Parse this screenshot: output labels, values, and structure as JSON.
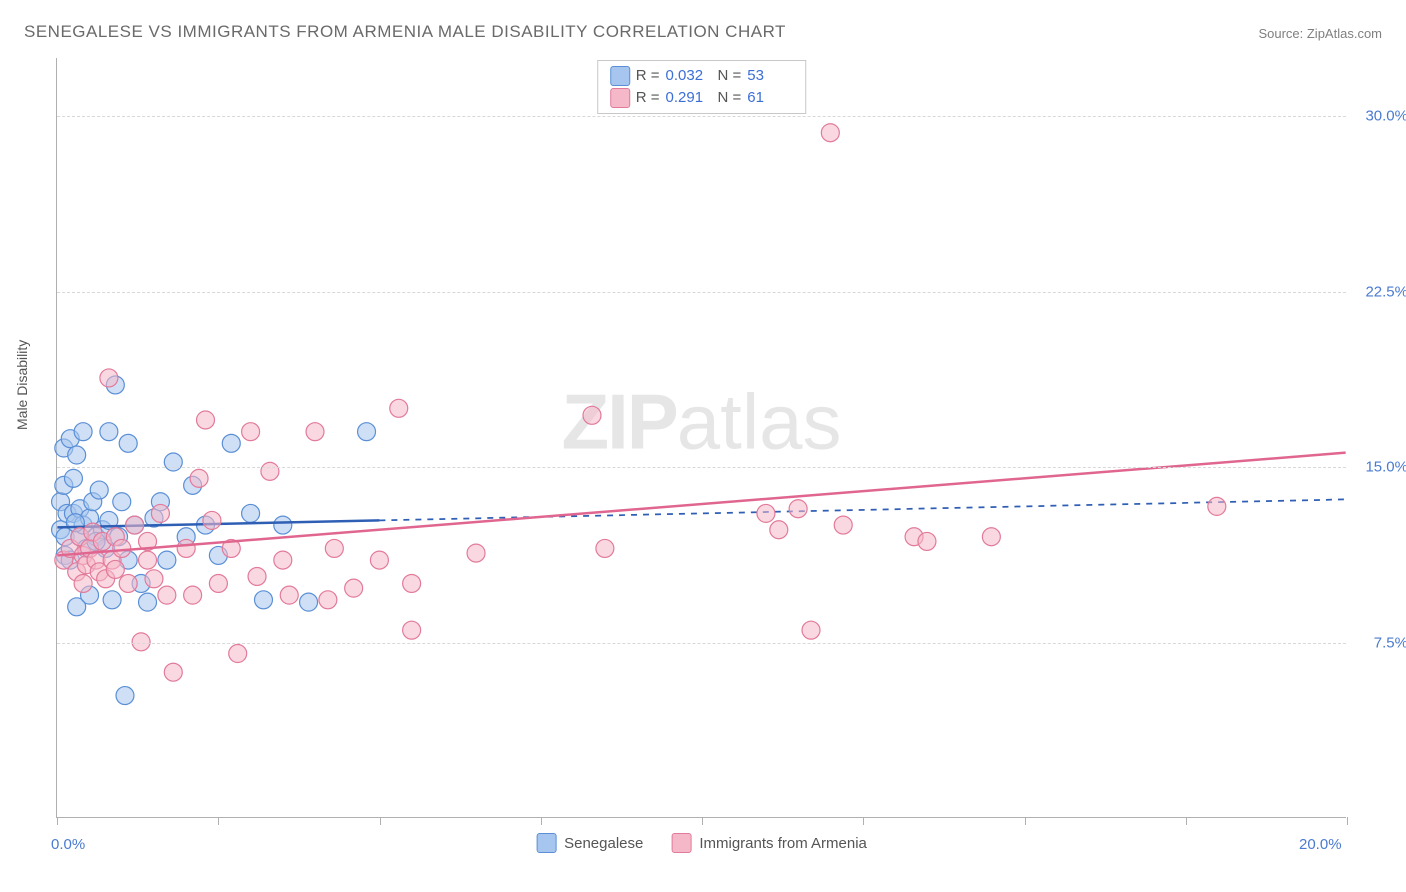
{
  "title": "SENEGALESE VS IMMIGRANTS FROM ARMENIA MALE DISABILITY CORRELATION CHART",
  "source": "Source: ZipAtlas.com",
  "ylabel": "Male Disability",
  "watermark_a": "ZIP",
  "watermark_b": "atlas",
  "chart": {
    "type": "scatter",
    "xlim": [
      0,
      20
    ],
    "ylim": [
      0,
      32.5
    ],
    "y_gridlines": [
      7.5,
      15.0,
      22.5,
      30.0
    ],
    "y_tick_labels": [
      "7.5%",
      "15.0%",
      "22.5%",
      "30.0%"
    ],
    "x_ticks": [
      0,
      2.5,
      5,
      7.5,
      10,
      12.5,
      15,
      17.5,
      20
    ],
    "x_tick_labels": {
      "0": "0.0%",
      "20": "20.0%"
    },
    "grid_color": "#d8d8d8",
    "axis_color": "#b0b0b0",
    "background_color": "#ffffff",
    "marker_radius": 9,
    "marker_opacity": 0.55,
    "y_label_color": "#4a7bd0",
    "y_label_fontsize": 15
  },
  "series": [
    {
      "name": "Senegalese",
      "color_fill": "#a7c6ef",
      "color_stroke": "#5a8fd6",
      "r_label": "R =",
      "r_value": "0.032",
      "n_label": "N =",
      "n_value": "53",
      "trend": {
        "x1": 0,
        "y1": 12.4,
        "x2": 20,
        "y2": 13.6,
        "solid_until_x": 5.0,
        "color": "#2f5fb5",
        "width": 2.5
      },
      "points": [
        [
          0.05,
          12.3
        ],
        [
          0.05,
          13.5
        ],
        [
          0.1,
          15.8
        ],
        [
          0.1,
          14.2
        ],
        [
          0.12,
          12.0
        ],
        [
          0.12,
          11.2
        ],
        [
          0.15,
          13.0
        ],
        [
          0.2,
          16.2
        ],
        [
          0.2,
          11.0
        ],
        [
          0.25,
          13.0
        ],
        [
          0.25,
          14.5
        ],
        [
          0.3,
          15.5
        ],
        [
          0.3,
          9.0
        ],
        [
          0.35,
          12.0
        ],
        [
          0.35,
          13.2
        ],
        [
          0.4,
          12.5
        ],
        [
          0.4,
          16.5
        ],
        [
          0.45,
          11.5
        ],
        [
          0.5,
          12.8
        ],
        [
          0.5,
          9.5
        ],
        [
          0.55,
          13.5
        ],
        [
          0.6,
          12.0
        ],
        [
          0.65,
          14.0
        ],
        [
          0.7,
          12.3
        ],
        [
          0.75,
          11.5
        ],
        [
          0.8,
          16.5
        ],
        [
          0.8,
          12.7
        ],
        [
          0.85,
          9.3
        ],
        [
          0.9,
          18.5
        ],
        [
          0.95,
          12.0
        ],
        [
          1.0,
          13.5
        ],
        [
          1.1,
          11.0
        ],
        [
          1.1,
          16.0
        ],
        [
          1.2,
          12.5
        ],
        [
          1.3,
          10.0
        ],
        [
          1.4,
          9.2
        ],
        [
          1.5,
          12.8
        ],
        [
          1.6,
          13.5
        ],
        [
          1.7,
          11.0
        ],
        [
          1.8,
          15.2
        ],
        [
          2.0,
          12.0
        ],
        [
          2.1,
          14.2
        ],
        [
          2.3,
          12.5
        ],
        [
          2.5,
          11.2
        ],
        [
          2.7,
          16.0
        ],
        [
          3.0,
          13.0
        ],
        [
          3.2,
          9.3
        ],
        [
          3.5,
          12.5
        ],
        [
          3.9,
          9.2
        ],
        [
          4.8,
          16.5
        ],
        [
          1.05,
          5.2
        ],
        [
          0.28,
          12.6
        ],
        [
          0.6,
          11.8
        ]
      ]
    },
    {
      "name": "Immigrants from Armenia",
      "color_fill": "#f5b8c9",
      "color_stroke": "#e27a9a",
      "r_label": "R =",
      "r_value": "0.291",
      "n_label": "N =",
      "n_value": "61",
      "trend": {
        "x1": 0,
        "y1": 11.2,
        "x2": 20,
        "y2": 15.6,
        "solid_until_x": 20,
        "color": "#e06690",
        "width": 2.5
      },
      "points": [
        [
          0.1,
          11.0
        ],
        [
          0.2,
          11.5
        ],
        [
          0.3,
          10.5
        ],
        [
          0.35,
          12.0
        ],
        [
          0.4,
          11.2
        ],
        [
          0.45,
          10.8
        ],
        [
          0.5,
          11.5
        ],
        [
          0.55,
          12.2
        ],
        [
          0.6,
          11.0
        ],
        [
          0.65,
          10.5
        ],
        [
          0.7,
          11.8
        ],
        [
          0.75,
          10.2
        ],
        [
          0.8,
          18.8
        ],
        [
          0.85,
          11.0
        ],
        [
          0.9,
          12.0
        ],
        [
          1.0,
          11.5
        ],
        [
          1.1,
          10.0
        ],
        [
          1.2,
          12.5
        ],
        [
          1.3,
          7.5
        ],
        [
          1.4,
          11.0
        ],
        [
          1.5,
          10.2
        ],
        [
          1.6,
          13.0
        ],
        [
          1.7,
          9.5
        ],
        [
          1.8,
          6.2
        ],
        [
          2.0,
          11.5
        ],
        [
          2.1,
          9.5
        ],
        [
          2.2,
          14.5
        ],
        [
          2.3,
          17.0
        ],
        [
          2.5,
          10.0
        ],
        [
          2.7,
          11.5
        ],
        [
          2.8,
          7.0
        ],
        [
          3.0,
          16.5
        ],
        [
          3.1,
          10.3
        ],
        [
          3.3,
          14.8
        ],
        [
          3.5,
          11.0
        ],
        [
          3.6,
          9.5
        ],
        [
          4.0,
          16.5
        ],
        [
          4.2,
          9.3
        ],
        [
          4.3,
          11.5
        ],
        [
          4.6,
          9.8
        ],
        [
          5.0,
          11.0
        ],
        [
          5.3,
          17.5
        ],
        [
          5.5,
          10.0
        ],
        [
          5.5,
          8.0
        ],
        [
          6.5,
          11.3
        ],
        [
          8.3,
          17.2
        ],
        [
          8.5,
          11.5
        ],
        [
          11.0,
          13.0
        ],
        [
          11.2,
          12.3
        ],
        [
          11.5,
          13.2
        ],
        [
          11.7,
          8.0
        ],
        [
          12.0,
          29.3
        ],
        [
          12.2,
          12.5
        ],
        [
          13.3,
          12.0
        ],
        [
          13.5,
          11.8
        ],
        [
          14.5,
          12.0
        ],
        [
          18.0,
          13.3
        ],
        [
          0.4,
          10.0
        ],
        [
          0.9,
          10.6
        ],
        [
          1.4,
          11.8
        ],
        [
          2.4,
          12.7
        ]
      ]
    }
  ],
  "bottom_legend": [
    {
      "swatch_fill": "#a7c6ef",
      "swatch_stroke": "#5a8fd6",
      "label": "Senegalese"
    },
    {
      "swatch_fill": "#f5b8c9",
      "swatch_stroke": "#e27a9a",
      "label": "Immigrants from Armenia"
    }
  ]
}
